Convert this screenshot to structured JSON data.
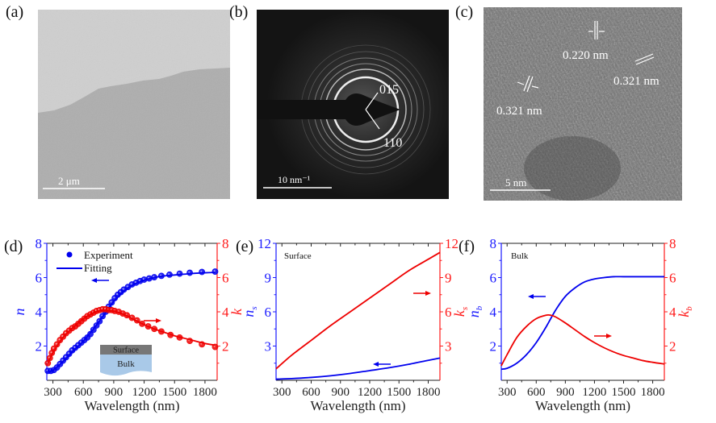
{
  "panels": {
    "a": {
      "label": "(a)",
      "scale_bar": "2 μm"
    },
    "b": {
      "label": "(b)",
      "scale_bar": "10 nm⁻¹",
      "annotations": [
        "015",
        "110"
      ]
    },
    "c": {
      "label": "(c)",
      "scale_bar": "5 nm",
      "annotations": [
        "0.220 nm",
        "0.321 nm",
        "0.321 nm"
      ]
    },
    "d": {
      "label": "(d)",
      "inset": {
        "surface": "Surface",
        "bulk": "Bulk"
      }
    },
    "e": {
      "label": "(e)",
      "tag": "Surface"
    },
    "f": {
      "label": "(f)",
      "tag": "Bulk"
    }
  },
  "colors": {
    "n_axis": "#1a1aff",
    "k_axis": "#ff1a1a",
    "n_curve": "#0000ee",
    "k_curve": "#ee0000"
  },
  "chart_data": [
    {
      "id": "d",
      "type": "scatter",
      "title": "",
      "xlabel": "Wavelength (nm)",
      "ylabel_left": "n",
      "ylabel_right": "k",
      "xlim": [
        240,
        1920
      ],
      "ylim_left": [
        0,
        8
      ],
      "ylim_right": [
        0,
        8
      ],
      "xticks": [
        300,
        600,
        900,
        1200,
        1500,
        1800
      ],
      "yticks_left": [
        2,
        4,
        6,
        8
      ],
      "yticks_right": [
        2,
        4,
        6,
        8
      ],
      "legend": {
        "position": "top-left",
        "entries": [
          "Experiment",
          "Fitting"
        ]
      },
      "series": [
        {
          "name": "n Experiment",
          "axis": "left",
          "style": "markers",
          "x": [
            250,
            280,
            310,
            340,
            370,
            400,
            430,
            460,
            490,
            520,
            550,
            580,
            610,
            640,
            670,
            700,
            730,
            760,
            790,
            820,
            850,
            880,
            910,
            940,
            970,
            1000,
            1040,
            1080,
            1120,
            1160,
            1200,
            1250,
            1300,
            1370,
            1450,
            1550,
            1650,
            1770,
            1900
          ],
          "y": [
            0.55,
            0.55,
            0.6,
            0.75,
            0.95,
            1.15,
            1.35,
            1.55,
            1.75,
            1.9,
            2.05,
            2.2,
            2.35,
            2.5,
            2.7,
            2.95,
            3.2,
            3.45,
            3.75,
            4.0,
            4.3,
            4.55,
            4.8,
            5.0,
            5.15,
            5.3,
            5.45,
            5.6,
            5.7,
            5.8,
            5.88,
            5.95,
            6.02,
            6.1,
            6.17,
            6.23,
            6.28,
            6.33,
            6.35
          ]
        },
        {
          "name": "n Fitting",
          "axis": "left",
          "style": "line",
          "x": [
            250,
            300,
            400,
            500,
            600,
            700,
            800,
            900,
            1000,
            1100,
            1200,
            1300,
            1400,
            1500,
            1600,
            1700,
            1800,
            1900
          ],
          "y": [
            0.55,
            0.6,
            1.1,
            1.7,
            2.3,
            3.0,
            3.8,
            4.6,
            5.2,
            5.6,
            5.85,
            6.0,
            6.1,
            6.15,
            6.2,
            6.25,
            6.28,
            6.3
          ]
        },
        {
          "name": "k Experiment",
          "axis": "right",
          "style": "markers",
          "x": [
            250,
            270,
            290,
            310,
            340,
            370,
            400,
            430,
            460,
            490,
            520,
            550,
            580,
            610,
            640,
            670,
            700,
            730,
            760,
            790,
            820,
            850,
            880,
            910,
            950,
            990,
            1030,
            1080,
            1130,
            1180,
            1240,
            1300,
            1370,
            1460,
            1550,
            1650,
            1770,
            1900
          ],
          "y": [
            1.0,
            1.3,
            1.6,
            1.85,
            2.1,
            2.35,
            2.55,
            2.75,
            2.9,
            3.05,
            3.15,
            3.3,
            3.45,
            3.6,
            3.75,
            3.85,
            3.95,
            4.05,
            4.1,
            4.15,
            4.15,
            4.1,
            4.1,
            4.05,
            4.0,
            3.9,
            3.8,
            3.65,
            3.5,
            3.3,
            3.15,
            3.0,
            2.85,
            2.65,
            2.5,
            2.3,
            2.1,
            1.95
          ]
        },
        {
          "name": "k Fitting",
          "axis": "right",
          "style": "line",
          "x": [
            250,
            300,
            400,
            500,
            600,
            700,
            800,
            900,
            1000,
            1100,
            1200,
            1300,
            1400,
            1500,
            1600,
            1700,
            1800,
            1900
          ],
          "y": [
            1.0,
            1.6,
            2.5,
            3.1,
            3.6,
            3.95,
            4.1,
            4.05,
            3.85,
            3.55,
            3.25,
            3.0,
            2.8,
            2.6,
            2.45,
            2.3,
            2.15,
            2.05
          ]
        }
      ],
      "annotations": [
        "arrow-left on n curve",
        "arrow-right on k curve"
      ]
    },
    {
      "id": "e",
      "type": "line",
      "title": "Surface",
      "xlabel": "Wavelength (nm)",
      "ylabel_left": "n_s",
      "ylabel_right": "k_s",
      "xlim": [
        240,
        1920
      ],
      "ylim_left": [
        0,
        12
      ],
      "ylim_right": [
        0,
        12
      ],
      "xticks": [
        300,
        600,
        900,
        1200,
        1500,
        1800
      ],
      "yticks_left": [
        3,
        6,
        9,
        12
      ],
      "yticks_right": [
        3,
        6,
        9,
        12
      ],
      "series": [
        {
          "name": "n_s",
          "axis": "left",
          "x": [
            240,
            400,
            600,
            800,
            1000,
            1200,
            1400,
            1600,
            1800,
            1920
          ],
          "y": [
            0.1,
            0.15,
            0.25,
            0.4,
            0.6,
            0.85,
            1.1,
            1.4,
            1.75,
            1.95
          ]
        },
        {
          "name": "k_s",
          "axis": "right",
          "x": [
            240,
            400,
            600,
            800,
            1000,
            1200,
            1400,
            1600,
            1800,
            1920
          ],
          "y": [
            1.0,
            2.2,
            3.5,
            4.8,
            6.0,
            7.2,
            8.4,
            9.6,
            10.6,
            11.2
          ]
        }
      ]
    },
    {
      "id": "f",
      "type": "line",
      "title": "Bulk",
      "xlabel": "Wavelength (nm)",
      "ylabel_left": "n_b",
      "ylabel_right": "k_b",
      "xlim": [
        240,
        1920
      ],
      "ylim_left": [
        0,
        8
      ],
      "ylim_right": [
        0,
        8
      ],
      "xticks": [
        300,
        600,
        900,
        1200,
        1500,
        1800
      ],
      "yticks_left": [
        2,
        4,
        6,
        8
      ],
      "yticks_right": [
        2,
        4,
        6,
        8
      ],
      "series": [
        {
          "name": "n_b",
          "axis": "left",
          "x": [
            240,
            300,
            400,
            500,
            600,
            700,
            800,
            900,
            1000,
            1100,
            1200,
            1300,
            1400,
            1500,
            1600,
            1700,
            1800,
            1920
          ],
          "y": [
            0.65,
            0.7,
            1.0,
            1.5,
            2.2,
            3.1,
            4.1,
            4.9,
            5.4,
            5.75,
            5.92,
            6.0,
            6.05,
            6.05,
            6.05,
            6.05,
            6.05,
            6.05
          ]
        },
        {
          "name": "k_b",
          "axis": "right",
          "x": [
            240,
            300,
            400,
            500,
            600,
            700,
            750,
            800,
            900,
            1000,
            1100,
            1200,
            1300,
            1400,
            1500,
            1600,
            1700,
            1800,
            1920
          ],
          "y": [
            0.85,
            1.5,
            2.5,
            3.15,
            3.6,
            3.8,
            3.8,
            3.7,
            3.35,
            2.95,
            2.55,
            2.2,
            1.9,
            1.65,
            1.45,
            1.3,
            1.15,
            1.05,
            0.95
          ]
        }
      ]
    }
  ]
}
